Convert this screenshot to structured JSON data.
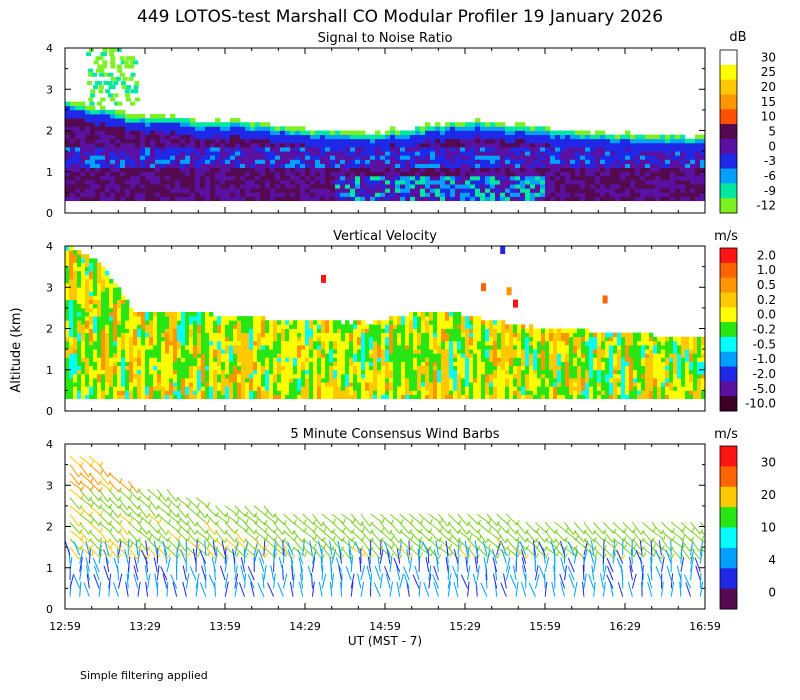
{
  "title": "449 LOTOS-test Marshall CO Modular Profiler 19 January 2026",
  "ylabel": "Altitude (km)",
  "xlabel": "UT  (MST - 7)",
  "footnote": "Simple filtering applied",
  "x_ticks": [
    "12:59",
    "13:29",
    "13:59",
    "14:29",
    "14:59",
    "15:29",
    "15:59",
    "16:29",
    "16:59"
  ],
  "y_ticks": [
    "0",
    "1",
    "2",
    "3",
    "4"
  ],
  "chart_data": [
    {
      "type": "heatmap",
      "title": "Signal to Noise Ratio",
      "colorbar_unit": "dB",
      "colorbar_labels": [
        "30",
        "25",
        "20",
        "15",
        "10",
        "5",
        "0",
        "-3",
        "-6",
        "-9",
        "-12"
      ],
      "colorbar_colors": [
        "#ffffff",
        "#ffff00",
        "#ffc800",
        "#ff9600",
        "#ff5000",
        "#550a50",
        "#5a10a0",
        "#1e28e6",
        "#00a0ff",
        "#00e8a0",
        "#7cf020"
      ],
      "xlim": [
        "12:59",
        "16:59"
      ],
      "ylim": [
        0,
        4
      ],
      "ylabel": "Altitude (km)",
      "profile_top_km": [
        2.7,
        2.5,
        2.3,
        2.3,
        2.2,
        2.2,
        2.1,
        2.0,
        1.95,
        1.9,
        2.0,
        2.1,
        2.2,
        2.1,
        2.05,
        1.95,
        1.9,
        1.85,
        1.85,
        1.8
      ],
      "lowest_range_km": 0.3
    },
    {
      "type": "heatmap",
      "title": "Vertical Velocity",
      "colorbar_unit": "m/s",
      "colorbar_labels": [
        "2.0",
        "1.0",
        "0.5",
        "0.2",
        "0.0",
        "-0.2",
        "-0.5",
        "-1.0",
        "-2.0",
        "-5.0",
        "-10.0"
      ],
      "colorbar_colors": [
        "#ff1414",
        "#ff6400",
        "#ff9600",
        "#ffc800",
        "#ffff00",
        "#28e614",
        "#00ffff",
        "#00a0ff",
        "#1e28e6",
        "#5a10a0",
        "#3c0028"
      ],
      "xlim": [
        "12:59",
        "16:59"
      ],
      "ylim": [
        0,
        4
      ],
      "ylabel": "Altitude (km)",
      "profile_top_km": [
        4.0,
        3.6,
        2.4,
        2.4,
        2.35,
        2.3,
        2.2,
        2.15,
        2.15,
        2.1,
        2.3,
        2.4,
        2.3,
        2.1,
        2.0,
        1.95,
        1.9,
        1.85,
        1.8,
        1.8
      ],
      "lowest_range_km": 0.3
    },
    {
      "type": "barbs",
      "title": "5 Minute Consensus Wind Barbs",
      "colorbar_unit": "m/s",
      "colorbar_labels": [
        "30",
        "20",
        "10",
        "4",
        "0"
      ],
      "colorbar_colors": [
        "#ff1414",
        "#ff6400",
        "#ffc800",
        "#28e614",
        "#00ffff",
        "#00a0ff",
        "#1e28e6",
        "#550a50"
      ],
      "xlim": [
        "12:59",
        "16:59"
      ],
      "ylim": [
        0,
        4
      ],
      "ylabel": "Altitude (km)",
      "levels_km": [
        0.3,
        0.5,
        0.7,
        0.9,
        1.1,
        1.3,
        1.5,
        1.7,
        1.9,
        2.1,
        2.3,
        2.5,
        2.7,
        2.9,
        3.1,
        3.3,
        3.5,
        3.7
      ],
      "top_km": [
        4.0,
        3.5,
        3.0,
        2.9,
        2.7,
        2.6,
        2.5,
        2.4,
        2.4,
        2.35,
        2.3,
        2.3,
        2.3,
        2.3,
        2.25,
        2.2,
        2.2,
        2.2,
        2.2,
        2.2
      ],
      "upper_speed_mps": 10,
      "lower_speed_mps": 3
    }
  ]
}
